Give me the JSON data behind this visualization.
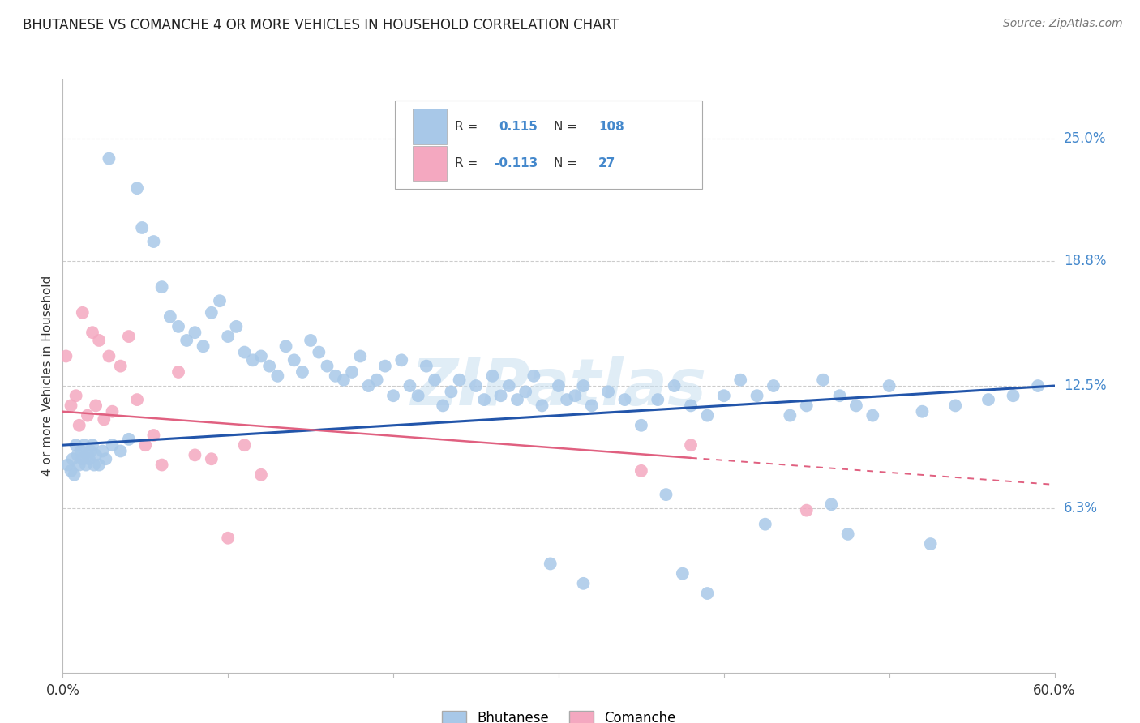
{
  "title": "BHUTANESE VS COMANCHE 4 OR MORE VEHICLES IN HOUSEHOLD CORRELATION CHART",
  "source": "Source: ZipAtlas.com",
  "ylabel": "4 or more Vehicles in Household",
  "ytick_labels": [
    "6.3%",
    "12.5%",
    "18.8%",
    "25.0%"
  ],
  "ytick_pct": [
    6.3,
    12.5,
    18.8,
    25.0
  ],
  "xlim_pct": [
    0.0,
    60.0
  ],
  "ylim_pct": [
    -2.0,
    28.0
  ],
  "bhutanese_color": "#a8c8e8",
  "comanche_color": "#f4a8c0",
  "trendline_blue": "#2255aa",
  "trendline_pink": "#e06080",
  "watermark": "ZIPatlas",
  "note_color": "#4488cc",
  "bhutanese_x": [
    2.8,
    4.5,
    4.8,
    5.5,
    6.0,
    6.5,
    7.0,
    7.5,
    8.0,
    8.5,
    9.0,
    9.5,
    10.0,
    10.5,
    11.0,
    11.5,
    12.0,
    12.5,
    13.0,
    13.5,
    14.0,
    14.5,
    15.0,
    15.5,
    16.0,
    16.5,
    17.0,
    17.5,
    18.0,
    18.5,
    19.0,
    19.5,
    20.0,
    20.5,
    21.0,
    21.5,
    22.0,
    22.5,
    23.0,
    23.5,
    24.0,
    25.0,
    25.5,
    26.0,
    26.5,
    27.0,
    27.5,
    28.0,
    28.5,
    29.0,
    30.0,
    30.5,
    31.0,
    31.5,
    32.0,
    33.0,
    34.0,
    35.0,
    36.0,
    37.0,
    38.0,
    39.0,
    40.0,
    41.0,
    42.0,
    43.0,
    44.0,
    45.0,
    46.0,
    47.0,
    48.0,
    49.0,
    50.0,
    52.0,
    54.0,
    56.0,
    57.5,
    59.0,
    0.3,
    0.5,
    0.6,
    0.7,
    0.8,
    0.9,
    1.0,
    1.1,
    1.2,
    1.3,
    1.4,
    1.5,
    1.6,
    1.7,
    1.8,
    1.9,
    2.0,
    2.2,
    2.4,
    2.6,
    3.0,
    3.5,
    4.0,
    36.5,
    42.5,
    46.5,
    47.5,
    52.5,
    29.5,
    37.5,
    31.5,
    39.0
  ],
  "bhutanese_y": [
    24.0,
    22.5,
    20.5,
    19.8,
    17.5,
    16.0,
    15.5,
    14.8,
    15.2,
    14.5,
    16.2,
    16.8,
    15.0,
    15.5,
    14.2,
    13.8,
    14.0,
    13.5,
    13.0,
    14.5,
    13.8,
    13.2,
    14.8,
    14.2,
    13.5,
    13.0,
    12.8,
    13.2,
    14.0,
    12.5,
    12.8,
    13.5,
    12.0,
    13.8,
    12.5,
    12.0,
    13.5,
    12.8,
    11.5,
    12.2,
    12.8,
    12.5,
    11.8,
    13.0,
    12.0,
    12.5,
    11.8,
    12.2,
    13.0,
    11.5,
    12.5,
    11.8,
    12.0,
    12.5,
    11.5,
    12.2,
    11.8,
    10.5,
    11.8,
    12.5,
    11.5,
    11.0,
    12.0,
    12.8,
    12.0,
    12.5,
    11.0,
    11.5,
    12.8,
    12.0,
    11.5,
    11.0,
    12.5,
    11.2,
    11.5,
    11.8,
    12.0,
    12.5,
    8.5,
    8.2,
    8.8,
    8.0,
    9.5,
    9.0,
    8.5,
    9.2,
    8.8,
    9.5,
    8.5,
    9.0,
    8.8,
    9.2,
    9.5,
    8.5,
    9.0,
    8.5,
    9.2,
    8.8,
    9.5,
    9.2,
    9.8,
    7.0,
    5.5,
    6.5,
    5.0,
    4.5,
    3.5,
    3.0,
    2.5,
    2.0
  ],
  "comanche_x": [
    0.2,
    0.5,
    0.8,
    1.0,
    1.2,
    1.5,
    1.8,
    2.0,
    2.2,
    2.5,
    2.8,
    3.0,
    3.5,
    4.0,
    4.5,
    5.0,
    5.5,
    6.0,
    7.0,
    8.0,
    9.0,
    10.0,
    11.0,
    12.0,
    35.0,
    38.0,
    45.0
  ],
  "comanche_y": [
    14.0,
    11.5,
    12.0,
    10.5,
    16.2,
    11.0,
    15.2,
    11.5,
    14.8,
    10.8,
    14.0,
    11.2,
    13.5,
    15.0,
    11.8,
    9.5,
    10.0,
    8.5,
    13.2,
    9.0,
    8.8,
    4.8,
    9.5,
    8.0,
    8.2,
    9.5,
    6.2
  ],
  "blue_trend_x0": 0.0,
  "blue_trend_y0": 9.5,
  "blue_trend_x1": 60.0,
  "blue_trend_y1": 12.5,
  "pink_trend_x0": 0.0,
  "pink_trend_y0": 11.2,
  "pink_trend_x1": 60.0,
  "pink_trend_y1": 7.5
}
